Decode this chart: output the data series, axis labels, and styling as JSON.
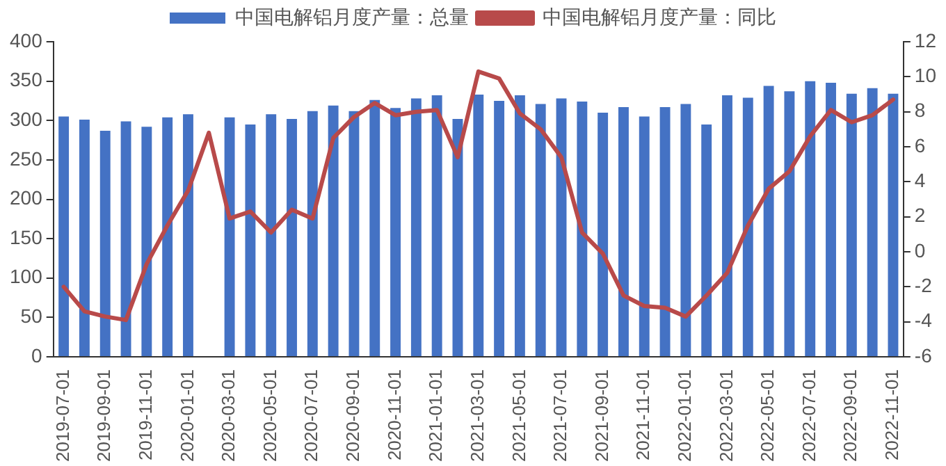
{
  "chart_data": {
    "type": "bar",
    "categories": [
      "2019-07-01",
      null,
      "2019-09-01",
      null,
      "2019-11-01",
      null,
      "2020-01-01",
      null,
      "2020-03-01",
      null,
      "2020-05-01",
      null,
      "2020-07-01",
      null,
      "2020-09-01",
      null,
      "2020-11-01",
      null,
      "2021-01-01",
      null,
      "2021-03-01",
      null,
      "2021-05-01",
      null,
      "2021-07-01",
      null,
      "2021-09-01",
      null,
      "2021-11-01",
      null,
      "2022-01-01",
      null,
      "2022-03-01",
      null,
      "2022-05-01",
      null,
      "2022-07-01",
      null,
      "2022-09-01",
      null,
      "2022-11-01"
    ],
    "series": [
      {
        "name": "中国电解铝月度产量：总量",
        "color": "#4472c4",
        "values": [
          305,
          301,
          287,
          299,
          292,
          304,
          308,
          null,
          304,
          295,
          308,
          302,
          312,
          319,
          312,
          326,
          316,
          328,
          332,
          302,
          333,
          325,
          332,
          321,
          328,
          324,
          310,
          317,
          305,
          317,
          321,
          295,
          332,
          329,
          344,
          337,
          350,
          348,
          334,
          341,
          334
        ]
      },
      {
        "name": "中国电解铝月度产量：同比",
        "type": "line",
        "axis": "y2",
        "color": "#b84a4a",
        "values": [
          -2.0,
          -3.4,
          -3.7,
          -3.9,
          -0.7,
          1.5,
          3.5,
          6.8,
          1.9,
          2.3,
          1.1,
          2.4,
          1.9,
          6.5,
          7.7,
          8.5,
          7.8,
          8.0,
          8.1,
          5.4,
          10.3,
          9.9,
          7.9,
          7.0,
          5.4,
          1.1,
          -0.1,
          -2.5,
          -3.1,
          -3.2,
          -3.7,
          -2.5,
          -1.2,
          1.5,
          3.6,
          4.6,
          6.6,
          8.1,
          7.4,
          7.8,
          8.7
        ]
      }
    ],
    "ylim": [
      0,
      400
    ],
    "yticks": [
      0,
      50,
      100,
      150,
      200,
      250,
      300,
      350,
      400
    ],
    "y2lim": [
      -6,
      12
    ],
    "y2ticks": [
      -6,
      -4,
      -2,
      0,
      2,
      4,
      6,
      8,
      10,
      12
    ],
    "grid": false,
    "legend": "top",
    "marker": "none"
  }
}
